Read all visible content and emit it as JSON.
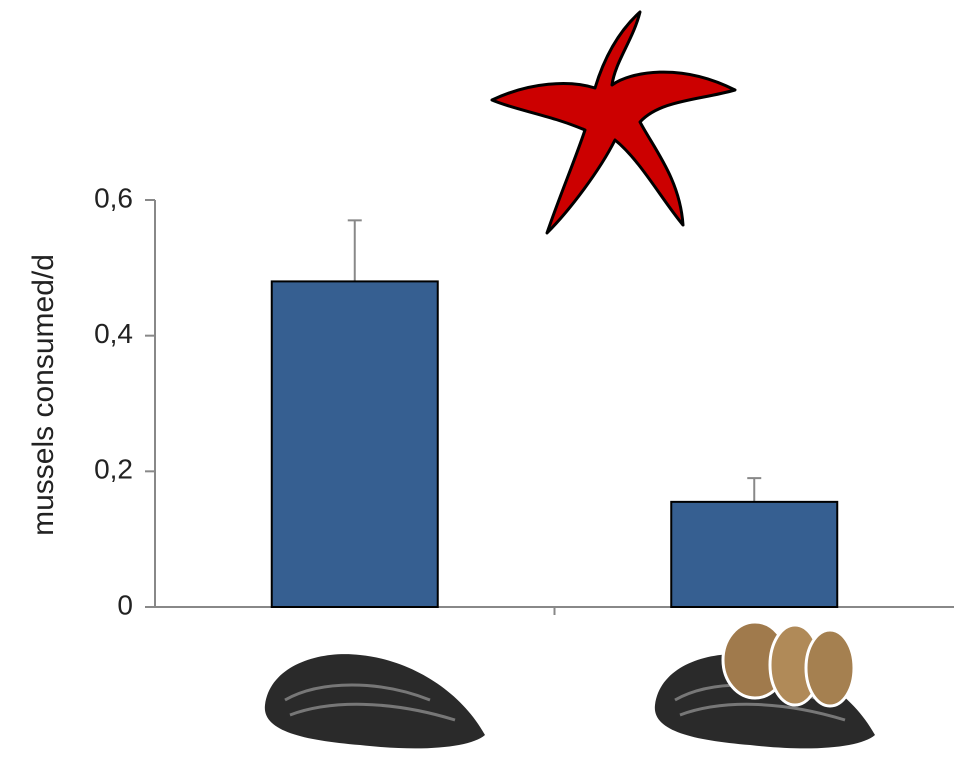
{
  "chart_data": {
    "type": "bar",
    "y_label": "mussels consumed/d",
    "categories": [
      null,
      null
    ],
    "values": [
      0.48,
      0.155
    ],
    "errors": [
      0.09,
      0.035
    ],
    "color": "#365f91",
    "ylim": [
      0,
      0.6
    ],
    "yticks": [
      0,
      {
        "value": 0.2,
        "label": "0,2"
      },
      {
        "value": 0.4,
        "label": "0,4"
      },
      {
        "value": 0.6,
        "label": "0,6"
      }
    ]
  }
}
